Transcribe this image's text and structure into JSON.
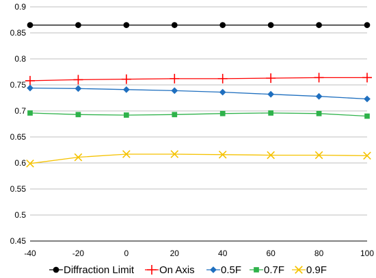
{
  "chart_data": {
    "type": "line",
    "title": "",
    "xlabel": "",
    "ylabel": "",
    "x": [
      -40,
      -20,
      0,
      20,
      40,
      60,
      80,
      100
    ],
    "xticks": [
      "-40",
      "-20",
      "0",
      "20",
      "40",
      "60",
      "80",
      "100"
    ],
    "xlim": [
      -40,
      100
    ],
    "ylim": [
      0.45,
      0.9
    ],
    "yticks": [
      "0.45",
      "0.5",
      "0.55",
      "0.6",
      "0.65",
      "0.7",
      "0.75",
      "0.8",
      "0.85",
      "0.9"
    ],
    "grid": "horizontal",
    "legend": "bottom",
    "series": [
      {
        "name": "Diffraction Limit",
        "marker": "circle",
        "color": "#000000",
        "values": [
          0.865,
          0.865,
          0.865,
          0.865,
          0.865,
          0.865,
          0.865,
          0.865
        ]
      },
      {
        "name": "On Axis",
        "marker": "plus",
        "color": "#ff0000",
        "values": [
          0.758,
          0.76,
          0.761,
          0.762,
          0.762,
          0.763,
          0.764,
          0.764
        ]
      },
      {
        "name": "0.5F",
        "marker": "diamond",
        "color": "#1f6fbf",
        "values": [
          0.744,
          0.743,
          0.741,
          0.739,
          0.736,
          0.732,
          0.728,
          0.723
        ]
      },
      {
        "name": "0.7F",
        "marker": "square",
        "color": "#2eb24a",
        "values": [
          0.696,
          0.693,
          0.692,
          0.693,
          0.695,
          0.696,
          0.695,
          0.69
        ]
      },
      {
        "name": "0.9F",
        "marker": "x",
        "color": "#f5c200",
        "values": [
          0.599,
          0.611,
          0.617,
          0.617,
          0.616,
          0.615,
          0.615,
          0.614
        ]
      }
    ]
  }
}
